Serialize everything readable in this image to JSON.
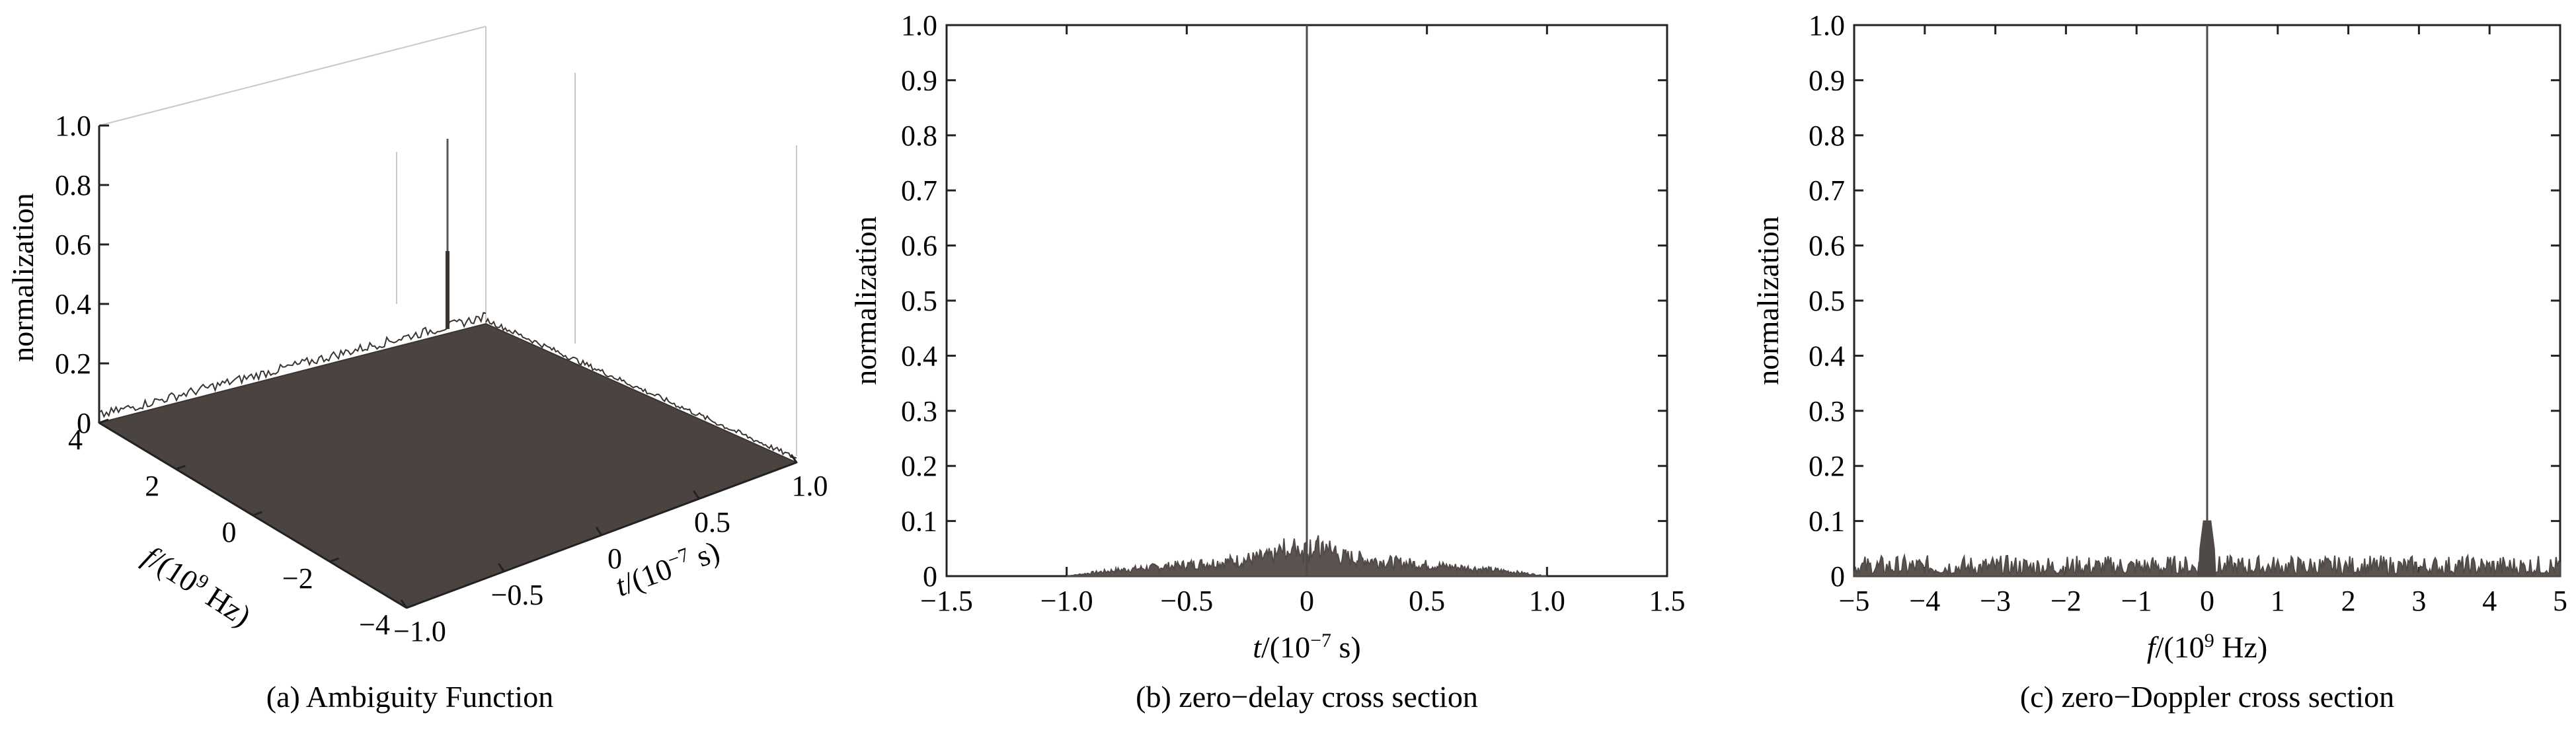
{
  "chart_data": [
    {
      "type": "surface3d",
      "caption": "(a) Ambiguity Function",
      "xlabel_main": "t",
      "xlabel_unit": "/(10",
      "xlabel_exp": "−7",
      "xlabel_tail": " s)",
      "ylabel_main": "f",
      "ylabel_unit": "/(10",
      "ylabel_exp": "9",
      "ylabel_tail": " Hz)",
      "zlabel": "normalization",
      "x_range": [
        -1.0,
        1.0
      ],
      "y_range": [
        -4,
        4
      ],
      "z_range": [
        0,
        1.0
      ],
      "x_ticks": [
        "−1.0",
        "−0.5",
        "0",
        "0.5",
        "1.0"
      ],
      "y_ticks": [
        "−4",
        "−2",
        "0",
        "2",
        "4"
      ],
      "z_ticks": [
        "0",
        "0.2",
        "0.4",
        "0.6",
        "0.8",
        "1.0"
      ],
      "peak": {
        "t": 0,
        "f": 0,
        "value": 1.0
      },
      "sidelobe_level": 0.03,
      "surface_color": "#4a433f",
      "grid": true
    },
    {
      "type": "line",
      "caption": "(b) zero−delay cross section",
      "xlabel_main": "t",
      "xlabel_unit": "/(10",
      "xlabel_exp": "−7",
      "xlabel_tail": " s)",
      "ylabel": "normalization",
      "xlim": [
        -1.5,
        1.5
      ],
      "ylim": [
        0,
        1.0
      ],
      "x_ticks": [
        "−1.5",
        "−1.0",
        "−0.5",
        "0",
        "0.5",
        "1.0",
        "1.5"
      ],
      "y_ticks": [
        "0",
        "0.1",
        "0.2",
        "0.3",
        "0.4",
        "0.5",
        "0.6",
        "0.7",
        "0.8",
        "0.9",
        "1.0"
      ],
      "series": [
        {
          "x": [
            -1.0,
            -0.9,
            -0.8,
            -0.7,
            -0.6,
            -0.5,
            -0.4,
            -0.3,
            -0.2,
            -0.1,
            -0.05,
            0,
            0.05,
            0.1,
            0.2,
            0.3,
            0.4,
            0.5,
            0.6,
            0.7,
            0.8,
            0.9,
            1.0
          ],
          "values": [
            0.0,
            0.008,
            0.015,
            0.02,
            0.025,
            0.03,
            0.035,
            0.04,
            0.048,
            0.055,
            0.06,
            1.0,
            0.06,
            0.055,
            0.048,
            0.04,
            0.035,
            0.03,
            0.025,
            0.02,
            0.015,
            0.008,
            0.0
          ]
        }
      ],
      "line_color": "#4f4a47",
      "grid": false
    },
    {
      "type": "line",
      "caption": "(c) zero−Doppler cross section",
      "xlabel_main": "f",
      "xlabel_unit": "/(10",
      "xlabel_exp": "9",
      "xlabel_tail": " Hz)",
      "ylabel": "normalization",
      "xlim": [
        -5,
        5
      ],
      "ylim": [
        0,
        1.0
      ],
      "x_ticks": [
        "−5",
        "−4",
        "−3",
        "−2",
        "−1",
        "0",
        "1",
        "2",
        "3",
        "4",
        "5"
      ],
      "y_ticks": [
        "0",
        "0.1",
        "0.2",
        "0.3",
        "0.4",
        "0.5",
        "0.6",
        "0.7",
        "0.8",
        "0.9",
        "1.0"
      ],
      "series": [
        {
          "x": [
            -5,
            -4,
            -3,
            -2,
            -1,
            -0.3,
            -0.1,
            -0.05,
            0,
            0.05,
            0.1,
            0.3,
            1,
            2,
            3,
            4,
            5
          ],
          "values": [
            0.02,
            0.02,
            0.02,
            0.02,
            0.02,
            0.03,
            0.06,
            0.1,
            1.0,
            0.1,
            0.06,
            0.03,
            0.02,
            0.02,
            0.02,
            0.02,
            0.02
          ]
        }
      ],
      "line_color": "#4f4a47",
      "grid": false
    }
  ]
}
